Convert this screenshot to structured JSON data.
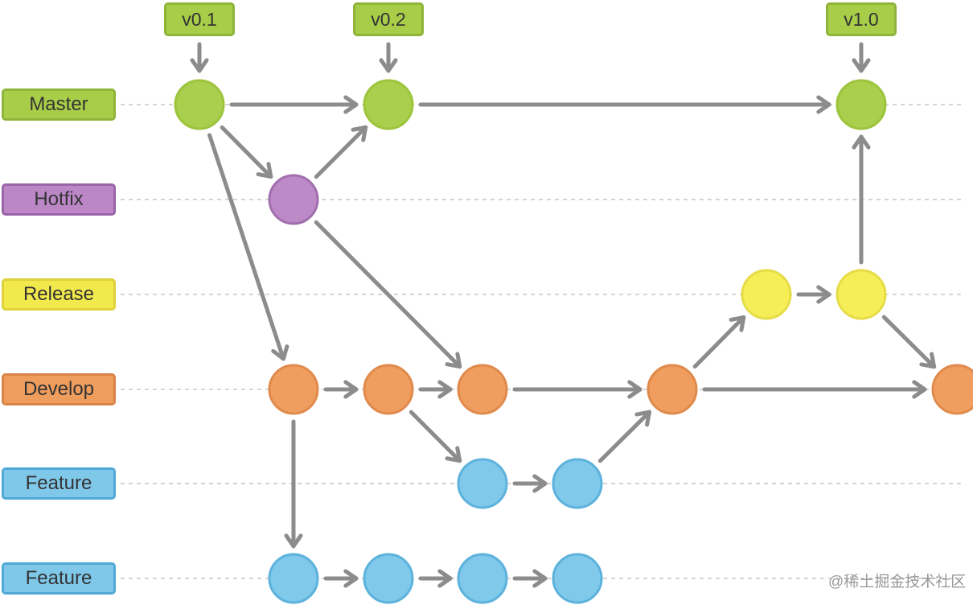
{
  "lanes": [
    {
      "id": "master",
      "label": "Master",
      "fill": "#a8cd48",
      "border": "#8fb43a",
      "node": "#a9cf4c",
      "node_stroke": "#9cc43c"
    },
    {
      "id": "hotfix",
      "label": "Hotfix",
      "fill": "#bb87c6",
      "border": "#9b63a8",
      "node": "#bd8ac8",
      "node_stroke": "#a16fae"
    },
    {
      "id": "release",
      "label": "Release",
      "fill": "#f2e94c",
      "border": "#ddd13c",
      "node": "#f6ee57",
      "node_stroke": "#e6dc48"
    },
    {
      "id": "develop",
      "label": "Develop",
      "fill": "#ee9d5d",
      "border": "#d98347",
      "node": "#ef9e5f",
      "node_stroke": "#e08a4c"
    },
    {
      "id": "feature1",
      "label": "Feature",
      "fill": "#7fc8ea",
      "border": "#4fa8d5",
      "node": "#80c9eb",
      "node_stroke": "#5cb2dc"
    },
    {
      "id": "feature2",
      "label": "Feature",
      "fill": "#7fc8ea",
      "border": "#4fa8d5",
      "node": "#80c9eb",
      "node_stroke": "#5cb2dc"
    }
  ],
  "tags": [
    {
      "label": "v0.1",
      "commit": "m1"
    },
    {
      "label": "v0.2",
      "commit": "m2"
    },
    {
      "label": "v1.0",
      "commit": "m3"
    }
  ],
  "commits": [
    {
      "id": "m1",
      "lane": "master"
    },
    {
      "id": "m2",
      "lane": "master"
    },
    {
      "id": "m3",
      "lane": "master"
    },
    {
      "id": "h1",
      "lane": "hotfix"
    },
    {
      "id": "r1",
      "lane": "release"
    },
    {
      "id": "r2",
      "lane": "release"
    },
    {
      "id": "d1",
      "lane": "develop"
    },
    {
      "id": "d2",
      "lane": "develop"
    },
    {
      "id": "d3",
      "lane": "develop"
    },
    {
      "id": "d4",
      "lane": "develop"
    },
    {
      "id": "d5",
      "lane": "develop"
    },
    {
      "id": "f1",
      "lane": "feature1"
    },
    {
      "id": "f2",
      "lane": "feature1"
    },
    {
      "id": "g1",
      "lane": "feature2"
    },
    {
      "id": "g2",
      "lane": "feature2"
    },
    {
      "id": "g3",
      "lane": "feature2"
    },
    {
      "id": "g4",
      "lane": "feature2"
    }
  ],
  "edges": [
    [
      "m1",
      "m2"
    ],
    [
      "m2",
      "m3"
    ],
    [
      "m1",
      "h1"
    ],
    [
      "h1",
      "m2"
    ],
    [
      "m1",
      "d1"
    ],
    [
      "h1",
      "d3"
    ],
    [
      "d1",
      "d2"
    ],
    [
      "d2",
      "d3"
    ],
    [
      "d3",
      "d4"
    ],
    [
      "d4",
      "d5"
    ],
    [
      "d2",
      "f1"
    ],
    [
      "f1",
      "f2"
    ],
    [
      "f2",
      "d4"
    ],
    [
      "d4",
      "r1"
    ],
    [
      "r1",
      "r2"
    ],
    [
      "r2",
      "m3"
    ],
    [
      "r2",
      "d5"
    ],
    [
      "d1",
      "g1"
    ],
    [
      "g1",
      "g2"
    ],
    [
      "g2",
      "g3"
    ],
    [
      "g3",
      "g4"
    ]
  ],
  "colors": {
    "arrow": "#8c8c8c",
    "guide": "#bbbbbb"
  },
  "watermark": "@稀土掘金技术社区"
}
